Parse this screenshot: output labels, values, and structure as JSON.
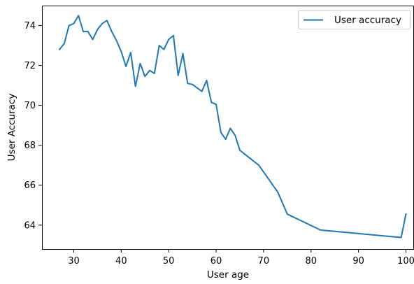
{
  "chart_data": {
    "type": "line",
    "title": "",
    "xlabel": "User age",
    "ylabel": "User Accuracy",
    "xlim": [
      23.3,
      101.7
    ],
    "ylim": [
      62.8,
      75.0
    ],
    "x_ticks": [
      30,
      40,
      50,
      60,
      70,
      80,
      90,
      100
    ],
    "y_ticks": [
      64,
      66,
      68,
      70,
      72,
      74
    ],
    "grid": false,
    "legend": {
      "position": "top-right"
    },
    "series": [
      {
        "name": "User accuracy",
        "color": "#1f77b4",
        "x": [
          27,
          28,
          29,
          30,
          31,
          32,
          33,
          34,
          35,
          36,
          37,
          38,
          39,
          40,
          41,
          42,
          43,
          44,
          45,
          46,
          47,
          48,
          49,
          50,
          51,
          52,
          53,
          54,
          55,
          57,
          58,
          59,
          60,
          61,
          62,
          63,
          64,
          65,
          69,
          73,
          75,
          82,
          99,
          100
        ],
        "y": [
          72.8,
          73.1,
          74.0,
          74.1,
          74.5,
          73.7,
          73.7,
          73.3,
          73.8,
          74.1,
          74.25,
          73.7,
          73.25,
          72.7,
          71.95,
          72.65,
          70.95,
          72.1,
          71.45,
          71.75,
          71.6,
          73.0,
          72.8,
          73.3,
          73.5,
          71.5,
          72.6,
          71.1,
          71.05,
          70.7,
          71.25,
          70.15,
          70.05,
          68.65,
          68.3,
          68.85,
          68.5,
          67.75,
          67.0,
          65.65,
          64.55,
          63.75,
          63.38,
          64.55
        ]
      }
    ]
  }
}
